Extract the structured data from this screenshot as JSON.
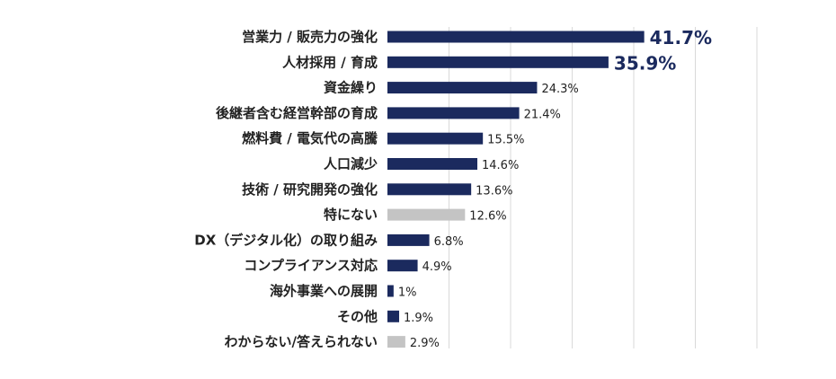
{
  "chart_data": {
    "type": "bar",
    "orientation": "horizontal",
    "categories": [
      "営業力 / 販売力の強化",
      "人材採用 / 育成",
      "資金繰り",
      "後継者含む経営幹部の育成",
      "燃料費 / 電気代の高騰",
      "人口減少",
      "技術 / 研究開発の強化",
      "特にない",
      "DX（デジタル化）の取り組み",
      "コンプライアンス対応",
      "海外事業への展開",
      "その他",
      "わからない/答えられない"
    ],
    "values": [
      41.7,
      35.9,
      24.3,
      21.4,
      15.5,
      14.6,
      13.6,
      12.6,
      6.8,
      4.9,
      1,
      1.9,
      2.9
    ],
    "value_labels": [
      "41.7%",
      "35.9%",
      "24.3%",
      "21.4%",
      "15.5%",
      "14.6%",
      "13.6%",
      "12.6%",
      "6.8%",
      "4.9%",
      "1%",
      "1.9%",
      "2.9%"
    ],
    "highlight": [
      true,
      true,
      false,
      false,
      false,
      false,
      false,
      false,
      false,
      false,
      false,
      false,
      false
    ],
    "muted": [
      false,
      false,
      false,
      false,
      false,
      false,
      false,
      true,
      false,
      false,
      false,
      false,
      true
    ],
    "xlim": [
      0,
      60
    ],
    "x_gridlines": [
      0,
      10,
      20,
      30,
      40,
      50,
      60
    ],
    "grid": true,
    "legend": "none",
    "title": "",
    "xlabel": "",
    "ylabel": "",
    "colors": {
      "bar": "#1b2a5e",
      "bar_muted": "#c4c4c4",
      "grid": "#d9d9d9",
      "label_main": "#222222",
      "label_muted": "#555555",
      "value_highlight": "#1b2a5e"
    }
  }
}
